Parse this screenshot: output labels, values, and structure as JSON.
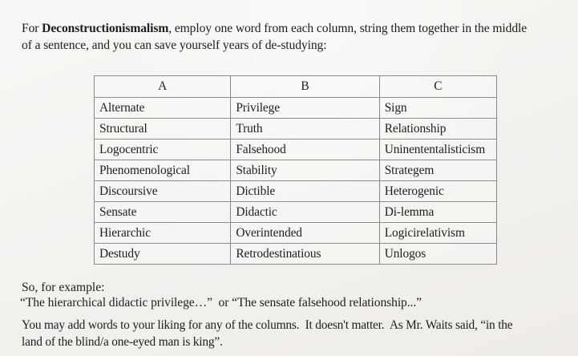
{
  "colors": {
    "paper": "#f5f3f0",
    "ink": "#1e1e1e",
    "table_border": "#5f6264"
  },
  "intro": {
    "line1_prefix": "For ",
    "line1_bold": "Deconstructionismalism",
    "line1_rest": ", employ one word from each column, string them together in the middle",
    "line2": "of a sentence, and you can save yourself years of de-studying:"
  },
  "table": {
    "headers": [
      "A",
      "B",
      "C"
    ],
    "rows": [
      [
        "Alternate",
        "Privilege",
        "Sign"
      ],
      [
        "Structural",
        "Truth",
        "Relationship"
      ],
      [
        "Logocentric",
        "Falsehood",
        "Uninententalisticism"
      ],
      [
        "Phenomenological",
        "Stability",
        "Strategem"
      ],
      [
        "Discoursive",
        "Dictible",
        "Heterogenic"
      ],
      [
        "Sensate",
        "Didactic",
        "Di-lemma"
      ],
      [
        "Hierarchic",
        "Overintended",
        "Logicirelativism"
      ],
      [
        "Destudy",
        "Retrodestinatious",
        "Unlogos"
      ]
    ]
  },
  "example": {
    "lead": "So, for example:",
    "quote_line": "“The hierarchical didactic privilege…”  or “The sensate falsehood relationship...”"
  },
  "closing": {
    "line1": "You may add words to your liking for any of the columns.  It doesn't matter.  As Mr. Waits said, “in the",
    "line2": "land of the blind/a one-eyed man is king”."
  }
}
